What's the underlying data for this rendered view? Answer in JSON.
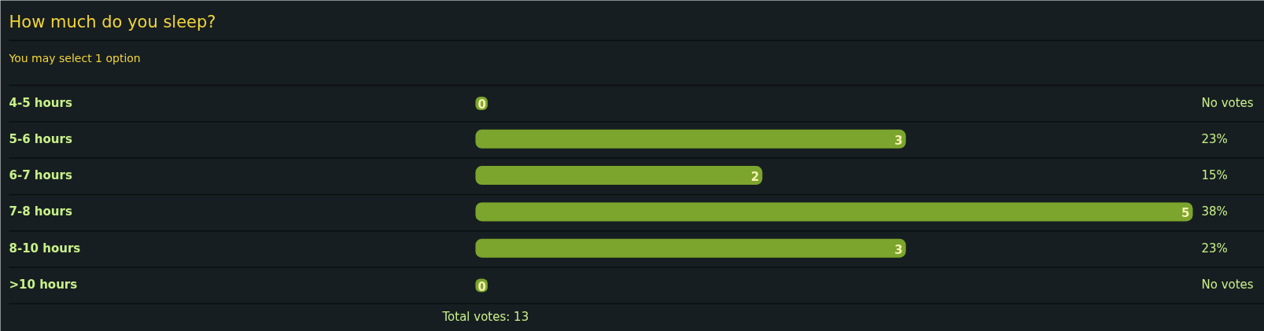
{
  "chart_data": {
    "type": "bar",
    "orientation": "horizontal",
    "title": "How much do you sleep?",
    "subtitle": "You may select 1 option",
    "categories": [
      "4-5 hours",
      "5-6 hours",
      "6-7 hours",
      "7-8 hours",
      "8-10 hours",
      ">10 hours"
    ],
    "values": [
      0,
      3,
      2,
      5,
      3,
      0
    ],
    "color": "#7ba52c",
    "data_labels": true,
    "annotations": [
      "No votes",
      "23%",
      "15%",
      "38%",
      "23%",
      "No votes",
      "Total votes: 13"
    ],
    "grid": "y"
  }
}
